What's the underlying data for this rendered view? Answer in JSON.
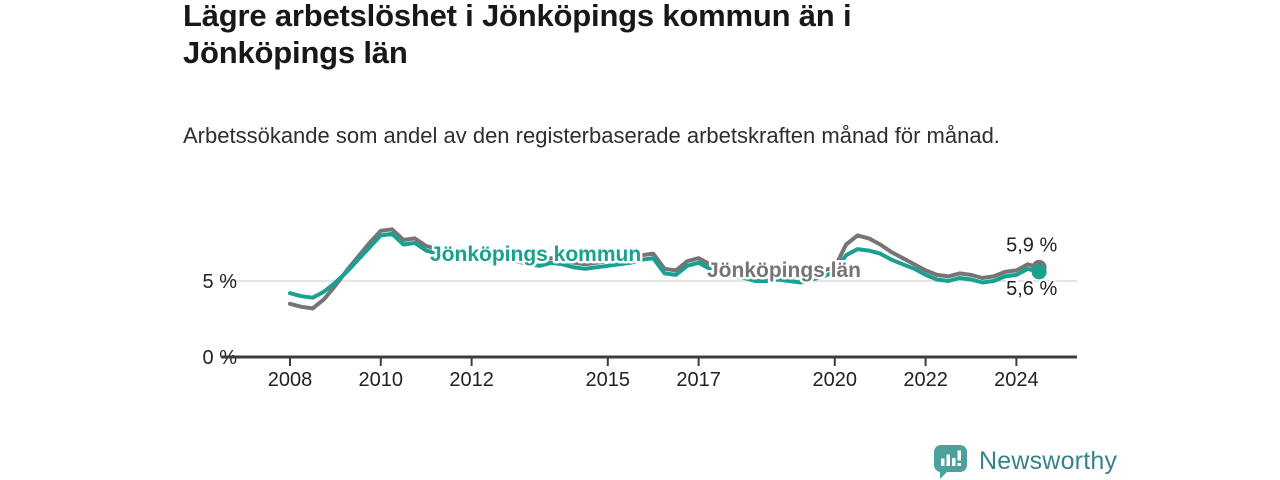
{
  "header": {
    "title": "Lägre arbetslöshet i Jönköpings kommun än i Jönköpings län",
    "subtitle": "Arbetssökande som andel av den registerbaserade arbetskraften månad för månad."
  },
  "chart_data": {
    "type": "line",
    "title": "Lägre arbetslöshet i Jönköpings kommun än i Jönköpings län",
    "subtitle": "Arbetssökande som andel av den registerbaserade arbetskraften månad för månad.",
    "unit": "%",
    "x_start": 2008,
    "x_step": 0.25,
    "x_end": 2024.5,
    "ylim": [
      0,
      9.3
    ],
    "grid": "single-horizontal-gridline-at-5",
    "legend_position": "inline-labels-on-lines",
    "x_ticks": [
      {
        "year": 2008,
        "label": "2008"
      },
      {
        "year": 2010,
        "label": "2010"
      },
      {
        "year": 2012,
        "label": "2012"
      },
      {
        "year": 2015,
        "label": "2015"
      },
      {
        "year": 2017,
        "label": "2017"
      },
      {
        "year": 2020,
        "label": "2020"
      },
      {
        "year": 2022,
        "label": "2022"
      },
      {
        "year": 2024,
        "label": "2024"
      }
    ],
    "y_ticks": [
      {
        "value": 0,
        "label": "0 %"
      },
      {
        "value": 5,
        "label": "5 %"
      }
    ],
    "series": [
      {
        "name": "Jönköpings län",
        "color": "#757575",
        "end_label": "5,9 %",
        "end_value": 5.9,
        "values": [
          3.5,
          3.3,
          3.2,
          3.8,
          4.7,
          5.7,
          6.6,
          7.5,
          8.3,
          8.4,
          7.7,
          7.8,
          7.3,
          7.1,
          6.9,
          7.1,
          6.9,
          6.7,
          6.6,
          6.7,
          6.6,
          6.4,
          6.3,
          6.5,
          6.4,
          6.2,
          6.1,
          6.2,
          6.3,
          6.4,
          6.5,
          6.7,
          6.8,
          5.8,
          5.7,
          6.3,
          6.5,
          6.1,
          5.8,
          5.6,
          5.5,
          5.3,
          5.3,
          5.4,
          5.3,
          5.2,
          5.4,
          5.7,
          5.9,
          7.4,
          8.0,
          7.8,
          7.4,
          6.9,
          6.5,
          6.1,
          5.7,
          5.4,
          5.3,
          5.5,
          5.4,
          5.2,
          5.3,
          5.6,
          5.7,
          6.1,
          5.9
        ]
      },
      {
        "name": "Jönköpings kommun",
        "color": "#18a190",
        "end_label": "5,6 %",
        "end_value": 5.6,
        "values": [
          4.2,
          4.0,
          3.9,
          4.3,
          4.9,
          5.6,
          6.4,
          7.2,
          8.0,
          8.1,
          7.4,
          7.5,
          7.0,
          6.8,
          6.6,
          6.8,
          6.6,
          6.4,
          6.3,
          6.4,
          6.3,
          6.1,
          6.0,
          6.2,
          6.1,
          5.9,
          5.8,
          5.9,
          6.0,
          6.1,
          6.2,
          6.4,
          6.5,
          5.5,
          5.4,
          6.0,
          6.2,
          5.8,
          5.5,
          5.3,
          5.2,
          5.0,
          5.0,
          5.1,
          5.0,
          4.9,
          5.1,
          5.3,
          5.6,
          6.7,
          7.1,
          7.0,
          6.8,
          6.4,
          6.1,
          5.8,
          5.4,
          5.1,
          5.0,
          5.2,
          5.1,
          4.9,
          5.0,
          5.3,
          5.4,
          5.8,
          5.6
        ]
      }
    ]
  },
  "footer": {
    "brand": "Newsworthy",
    "brand_color": "#37838b",
    "icon_color": "#4ba19c",
    "icon_glyph_color": "#ffffff"
  }
}
